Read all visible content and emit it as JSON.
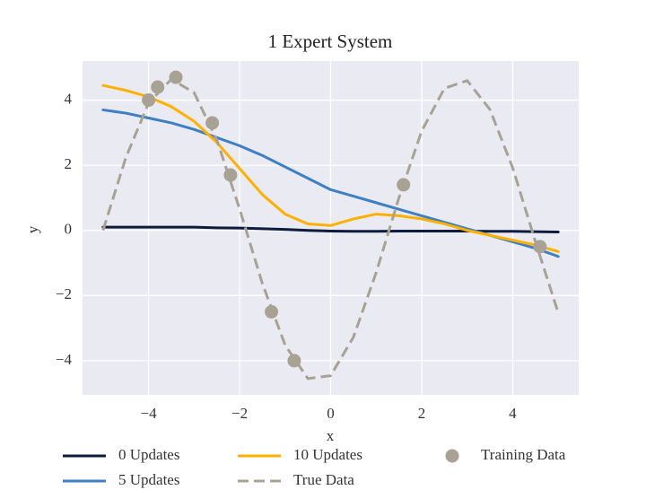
{
  "chart_data": {
    "type": "line",
    "title": "1 Expert System",
    "x_label": "x",
    "y_label": "y",
    "x": [
      -5,
      -4.5,
      -4,
      -3.5,
      -3,
      -2.5,
      -2,
      -1.5,
      -1,
      -0.5,
      0,
      0.5,
      1,
      1.5,
      2,
      2.5,
      3,
      3.5,
      4,
      4.5,
      5
    ],
    "series": [
      {
        "name": "0 Updates",
        "color": "#0d1b3e",
        "style": "solid",
        "values": [
          0.1,
          0.1,
          0.1,
          0.1,
          0.1,
          0.08,
          0.07,
          0.05,
          0.03,
          0,
          -0.02,
          -0.03,
          -0.03,
          -0.02,
          -0.02,
          -0.02,
          -0.02,
          -0.03,
          -0.03,
          -0.04,
          -0.05
        ]
      },
      {
        "name": "5 Updates",
        "color": "#3f7fc4",
        "style": "solid",
        "values": [
          3.7,
          3.6,
          3.45,
          3.3,
          3.1,
          2.85,
          2.6,
          2.3,
          1.95,
          1.6,
          1.25,
          1.05,
          0.85,
          0.65,
          0.45,
          0.25,
          0.05,
          -0.15,
          -0.35,
          -0.55,
          -0.8
        ]
      },
      {
        "name": "10 Updates",
        "color": "#ffb000",
        "style": "solid",
        "values": [
          4.45,
          4.3,
          4.1,
          3.8,
          3.35,
          2.7,
          1.9,
          1.1,
          0.5,
          0.2,
          0.15,
          0.35,
          0.5,
          0.45,
          0.35,
          0.2,
          0,
          -0.15,
          -0.3,
          -0.45,
          -0.65
        ]
      },
      {
        "name": "True Data",
        "color": "#a8a294",
        "style": "dashed",
        "values": [
          0,
          2.23,
          3.91,
          4.64,
          4.23,
          2.78,
          0.66,
          -1.63,
          -3.52,
          -4.55,
          -4.46,
          -3.28,
          -1.3,
          1,
          3.05,
          4.36,
          4.6,
          3.71,
          1.92,
          -0.35,
          -2.53
        ]
      },
      {
        "name": "Training Data",
        "color": "#a8a294",
        "style": "markers",
        "x": [
          -4,
          -3.8,
          -3.4,
          -2.6,
          -2.2,
          -1.3,
          -0.8,
          1.6,
          4.6
        ],
        "values": [
          4,
          4.4,
          4.7,
          3.3,
          1.7,
          -2.5,
          -4,
          1.4,
          -0.5
        ]
      }
    ],
    "xlim": [
      -5.45,
      5.45
    ],
    "ylim": [
      -5.05,
      5.2
    ],
    "xticks": [
      {
        "value": -4,
        "label": "−4"
      },
      {
        "value": -2,
        "label": "−2"
      },
      0,
      2,
      4
    ],
    "yticks": [
      {
        "value": -4,
        "label": "−4"
      },
      {
        "value": -2,
        "label": "−2"
      },
      0,
      2,
      4
    ],
    "grid": true,
    "legend": "bottom"
  }
}
